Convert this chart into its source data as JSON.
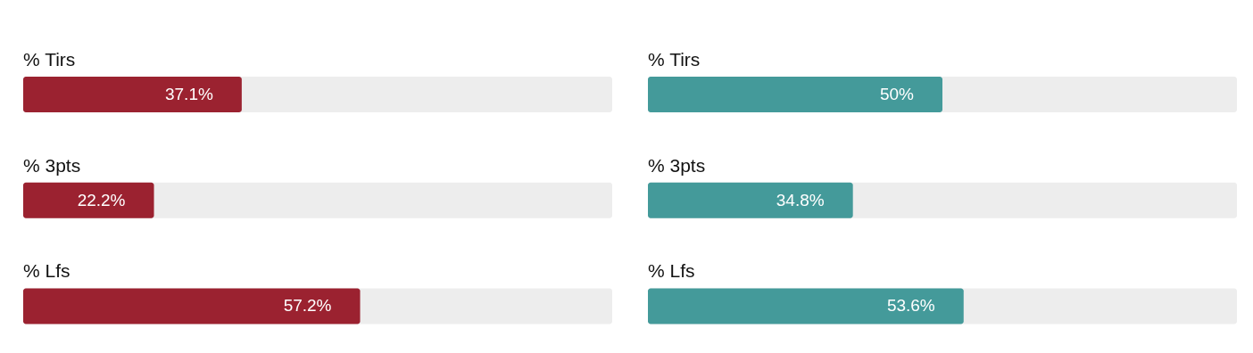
{
  "chart_data": [
    {
      "type": "bar",
      "orientation": "horizontal",
      "categories": [
        "% Tirs",
        "% 3pts",
        "% Lfs"
      ],
      "values": [
        37.1,
        22.2,
        57.2
      ],
      "color": "#9b2230",
      "value_labels": [
        "37.1%",
        "22.2%",
        "57.2%"
      ],
      "xlim": [
        0,
        100
      ],
      "tick_labels": "y"
    },
    {
      "type": "bar",
      "orientation": "horizontal",
      "categories": [
        "% Tirs",
        "% 3pts",
        "% Lfs"
      ],
      "values": [
        50,
        34.8,
        53.6
      ],
      "color": "#449a9a",
      "value_labels": [
        "50%",
        "34.8%",
        "53.6%"
      ],
      "xlim": [
        0,
        100
      ],
      "tick_labels": "y"
    }
  ]
}
